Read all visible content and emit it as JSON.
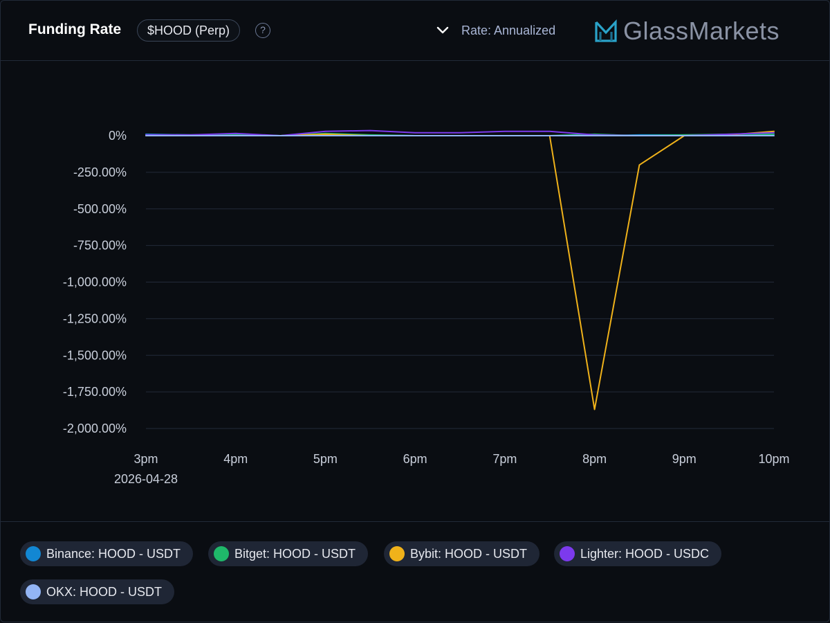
{
  "header": {
    "title": "Funding Rate",
    "asset_pill": "$HOOD (Perp)",
    "help_glyph": "?",
    "rate_toggle_label": "Rate: Annualized",
    "brand_name": "GlassMarkets"
  },
  "chart_data": {
    "type": "line",
    "title": "",
    "xlabel": "",
    "ylabel": "",
    "x": [
      "15:00",
      "15:30",
      "16:00",
      "16:30",
      "17:00",
      "17:30",
      "18:00",
      "18:30",
      "19:00",
      "19:30",
      "20:00",
      "20:30",
      "21:00",
      "21:30",
      "22:00"
    ],
    "x_tick_labels": [
      "3pm",
      "4pm",
      "5pm",
      "6pm",
      "7pm",
      "8pm",
      "9pm",
      "10pm"
    ],
    "x_date_label": "2026-04-28",
    "y_tick_labels": [
      "0%",
      "-250.00%",
      "-500.00%",
      "-750.00%",
      "-1,000.00%",
      "-1,250.00%",
      "-1,500.00%",
      "-1,750.00%",
      "-2,000.00%"
    ],
    "ylim": [
      -2000,
      0
    ],
    "grid": true,
    "legend_placement": "bottom",
    "series": [
      {
        "name": "Binance: HOOD - USDT",
        "color": "#1287d3",
        "values": [
          10,
          5,
          3,
          0,
          5,
          3,
          0,
          0,
          0,
          0,
          0,
          5,
          5,
          5,
          10
        ]
      },
      {
        "name": "Bitget: HOOD - USDT",
        "color": "#1fb86a",
        "values": [
          5,
          5,
          10,
          0,
          15,
          5,
          0,
          0,
          0,
          0,
          10,
          0,
          5,
          10,
          10
        ]
      },
      {
        "name": "Bybit: HOOD - USDT",
        "color": "#f0b21a",
        "values": [
          0,
          0,
          0,
          0,
          10,
          0,
          0,
          0,
          0,
          0,
          -1870,
          -200,
          0,
          5,
          30
        ]
      },
      {
        "name": "Lighter: HOOD - USDC",
        "color": "#7c3aed",
        "values": [
          5,
          5,
          15,
          0,
          30,
          35,
          20,
          20,
          30,
          30,
          5,
          0,
          0,
          10,
          20
        ]
      },
      {
        "name": "OKX: HOOD - USDT",
        "color": "#93b5f5",
        "values": [
          0,
          0,
          0,
          0,
          0,
          0,
          0,
          0,
          0,
          0,
          0,
          0,
          0,
          0,
          0
        ]
      }
    ]
  }
}
